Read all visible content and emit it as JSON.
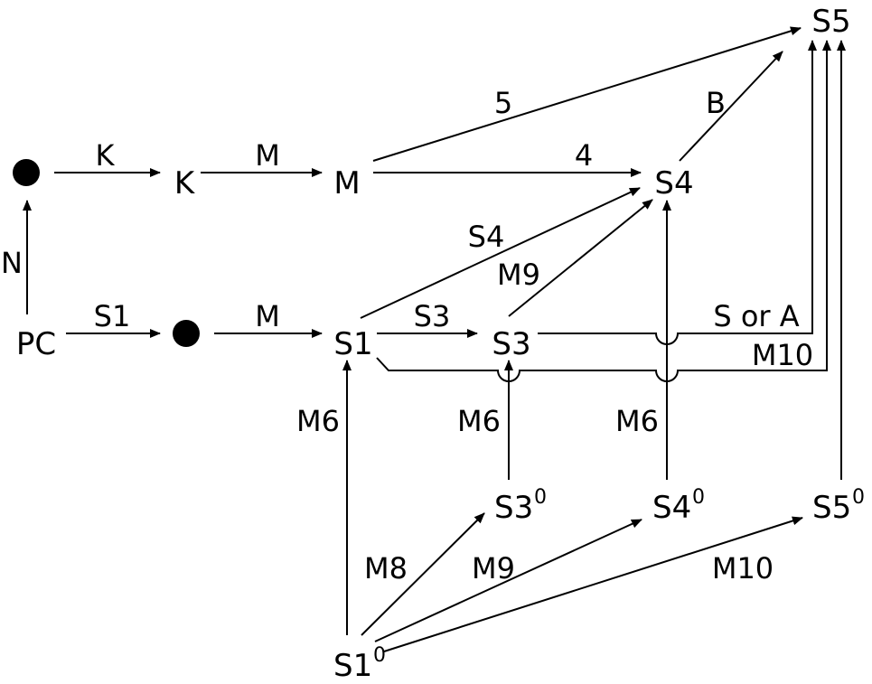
{
  "nodes": {
    "pc": "PC",
    "k": "K",
    "m": "M",
    "s1": "S1",
    "s3": "S3",
    "s4": "S4",
    "s5": "S5",
    "s1_0": "S1",
    "s3_0": "S3",
    "s4_0": "S4",
    "s5_0": "S5",
    "zero": "0"
  },
  "edges": {
    "n": "N",
    "k": "K",
    "m_top": "M",
    "five": "5",
    "four": "4",
    "b": "B",
    "s1": "S1",
    "m_mid": "M",
    "s4": "S4",
    "m9_upper": "M9",
    "s3": "S3",
    "s_or_a": "S or A",
    "m10_upper": "M10",
    "m6_left": "M6",
    "m6_mid": "M6",
    "m6_right": "M6",
    "m8": "M8",
    "m9_lower": "M9",
    "m10_lower": "M10"
  }
}
